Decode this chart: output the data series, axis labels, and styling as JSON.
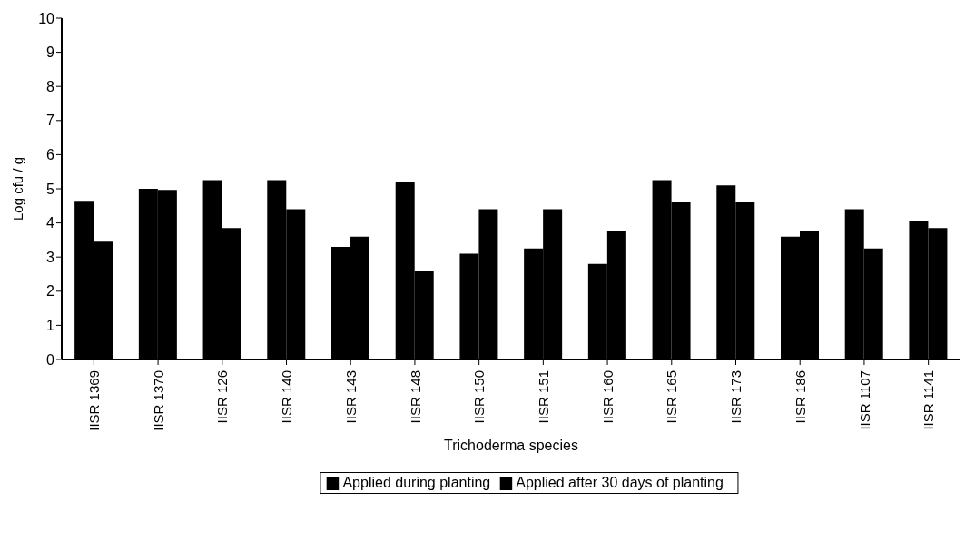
{
  "chart_data": {
    "type": "bar",
    "xlabel": "Trichoderma species",
    "ylabel": "Log cfu / g",
    "categories": [
      "IISR 1369",
      "IISR 1370",
      "IISR 126",
      "IISR 140",
      "IISR 143",
      "IISR 148",
      "IISR 150",
      "IISR 151",
      "IISR 160",
      "IISR 165",
      "IISR 173",
      "IISR 186",
      "IISR 1107",
      "IISR 1141"
    ],
    "series": [
      {
        "name": "Applied during planting",
        "color": "#000000",
        "values": [
          4.65,
          5.0,
          5.25,
          5.25,
          3.3,
          5.2,
          3.1,
          3.25,
          2.8,
          5.25,
          5.1,
          3.6,
          4.4,
          4.05
        ]
      },
      {
        "name": "Applied after 30 days of planting",
        "color": "#000000",
        "values": [
          3.45,
          4.97,
          3.85,
          4.4,
          3.6,
          2.6,
          4.4,
          4.4,
          3.75,
          4.6,
          4.6,
          3.75,
          3.25,
          3.85
        ]
      }
    ],
    "ylim": [
      0,
      10
    ],
    "yticks": [
      0,
      1,
      2,
      3,
      4,
      5,
      6,
      7,
      8,
      9,
      10
    ],
    "grid": false,
    "legend": "bottom"
  }
}
